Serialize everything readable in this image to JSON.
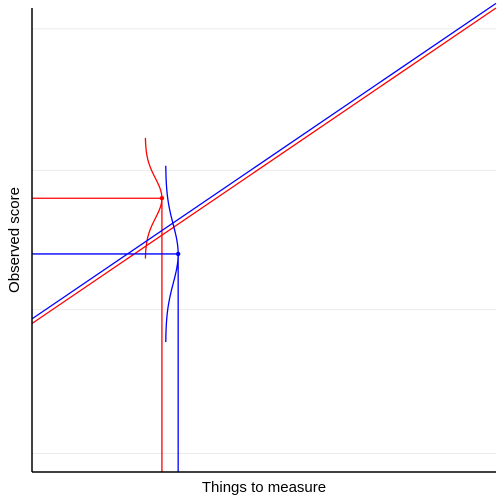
{
  "chart_data": {
    "type": "line",
    "title": "",
    "xlabel": "Things to measure",
    "ylabel": "Observed score",
    "xlim": [
      0,
      1
    ],
    "ylim": [
      0,
      1
    ],
    "grid": {
      "horizontal": true,
      "vertical": false
    },
    "y_gridlines": [
      0.04,
      0.35,
      0.65,
      0.955
    ],
    "series": [
      {
        "color": "#ff0000",
        "line": {
          "intercept": 0.32,
          "slope": 0.68
        },
        "point": {
          "x": 0.28,
          "y": 0.59
        },
        "error_curve_half_height": 0.13,
        "error_curve_width": 0.036
      },
      {
        "color": "#0000ff",
        "line": {
          "intercept": 0.33,
          "slope": 0.68
        },
        "point": {
          "x": 0.315,
          "y": 0.47
        },
        "error_curve_half_height": 0.19,
        "error_curve_width": 0.027
      }
    ],
    "colors": {
      "grid": "#ebebeb",
      "axis": "#000000",
      "background": "#ffffff"
    }
  }
}
